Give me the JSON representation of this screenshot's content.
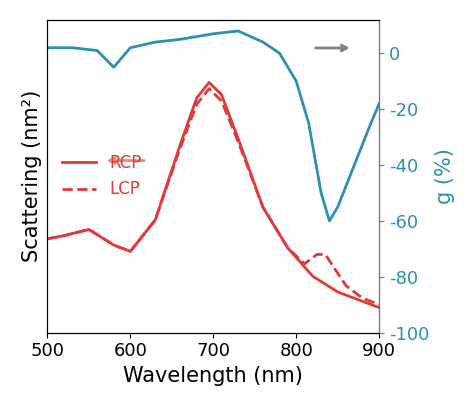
{
  "chart_data": {
    "type": "line",
    "x_label": "Wavelength (nm)",
    "y_label": "Scattering (nm²)",
    "y2_label": "g (%)",
    "xlim": [
      500,
      900
    ],
    "xticks": [
      500,
      600,
      700,
      800,
      900
    ],
    "ylim": [
      0,
      100
    ],
    "yticks": [],
    "y2lim": [
      -100,
      12
    ],
    "y2ticks": [
      0,
      -20,
      -40,
      -60,
      -80,
      -100
    ],
    "legend": "center left",
    "series": [
      {
        "name": "RCP",
        "color": "#e03a3a",
        "line_style": "solid",
        "x": [
          500,
          520,
          550,
          580,
          600,
          630,
          660,
          680,
          695,
          710,
          730,
          760,
          790,
          820,
          850,
          880,
          900
        ],
        "values": [
          30,
          31,
          33,
          28,
          26,
          36,
          60,
          75,
          80,
          76,
          62,
          40,
          27,
          18,
          13,
          10,
          8
        ]
      },
      {
        "name": "LCP",
        "color": "#e03a3a",
        "line_style": "dashed",
        "x": [
          500,
          520,
          550,
          580,
          600,
          630,
          660,
          680,
          695,
          710,
          730,
          760,
          790,
          810,
          825,
          835,
          845,
          860,
          880,
          900
        ],
        "values": [
          30,
          31,
          33,
          28,
          26,
          36,
          59,
          73,
          78,
          74,
          61,
          40,
          27,
          22,
          25,
          25,
          21,
          15,
          11,
          9
        ]
      },
      {
        "axis": "y2",
        "color": "#2e8fae",
        "line_style": "solid",
        "x": [
          500,
          530,
          560,
          580,
          600,
          630,
          660,
          700,
          730,
          760,
          780,
          800,
          815,
          830,
          840,
          850,
          870,
          890,
          900
        ],
        "values": [
          2,
          2,
          1,
          -5,
          2,
          4,
          5,
          7,
          8,
          4,
          0,
          -10,
          -25,
          -50,
          -60,
          -55,
          -40,
          -25,
          -18
        ]
      }
    ]
  }
}
